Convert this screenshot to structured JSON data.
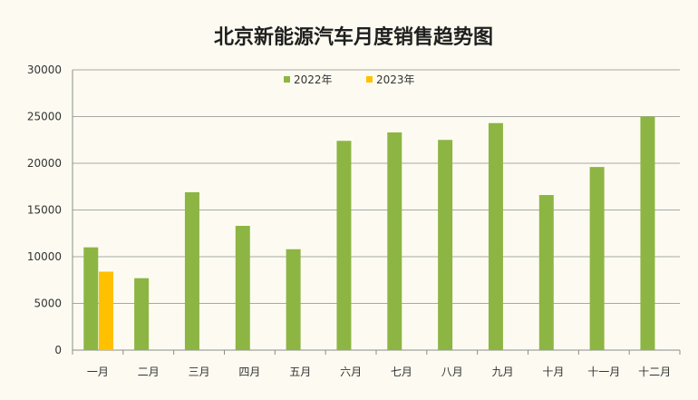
{
  "chart_data": {
    "type": "bar",
    "title": "北京新能源汽车月度销售趋势图",
    "categories": [
      "一月",
      "二月",
      "三月",
      "四月",
      "五月",
      "六月",
      "七月",
      "八月",
      "九月",
      "十月",
      "十一月",
      "十二月"
    ],
    "series": [
      {
        "name": "2022年",
        "color": "#8db543",
        "values": [
          11000,
          7700,
          16900,
          13300,
          10800,
          22400,
          23300,
          22500,
          24300,
          16600,
          19600,
          25000
        ]
      },
      {
        "name": "2023年",
        "color": "#ffc000",
        "values": [
          8400,
          null,
          null,
          null,
          null,
          null,
          null,
          null,
          null,
          null,
          null,
          null
        ]
      }
    ],
    "ylim": [
      0,
      30000
    ],
    "yticks": [
      0,
      5000,
      10000,
      15000,
      20000,
      25000,
      30000
    ],
    "grid": true,
    "legend_position": "top-center",
    "xlabel": "",
    "ylabel": ""
  }
}
